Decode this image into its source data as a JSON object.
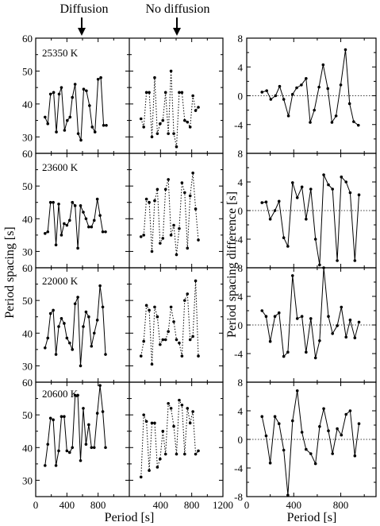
{
  "header": {
    "diffusion": "Diffusion",
    "no_diffusion": "No diffusion"
  },
  "axis_labels": {
    "left_y": "Period spacing [s]",
    "right_y": "Period spacing difference [s]",
    "left_x": "Period [s]",
    "right_x": "Period [s]"
  },
  "temperatures": [
    "25350 K",
    "23600 K",
    "22000 K",
    "20600 K"
  ],
  "arrow_positions_s": [
    580,
    600
  ],
  "chart_data": [
    {
      "type": "line",
      "panel": "period-spacing",
      "x_range": [
        0,
        1200
      ],
      "y_range": [
        25,
        60
      ],
      "x_ticks": [
        0,
        400,
        800,
        1200
      ],
      "y_ticks": [
        30,
        40,
        50,
        60
      ],
      "series": [
        {
          "style": "solid",
          "x": [
            120,
            155,
            190,
            230,
            265,
            300,
            330,
            370,
            405,
            440,
            470,
            505,
            545,
            580,
            615,
            650,
            690,
            725,
            760,
            800,
            835,
            870,
            905
          ],
          "y": [
            36,
            34,
            43,
            43.5,
            31.5,
            43,
            45,
            32,
            35,
            36,
            42,
            46,
            31,
            29,
            44.5,
            44,
            39.5,
            33,
            31.5,
            47.5,
            48,
            33.5,
            33.5
          ]
        },
        {
          "style": "dotted",
          "x": [
            150,
            185,
            220,
            255,
            290,
            325,
            360,
            395,
            430,
            465,
            500,
            535,
            570,
            605,
            640,
            675,
            710,
            745,
            780,
            815,
            850,
            885
          ],
          "y": [
            35.5,
            33,
            43.5,
            43.5,
            30,
            48,
            31,
            34,
            35,
            43.5,
            31,
            50,
            31,
            27,
            43.5,
            43.5,
            35,
            34.5,
            33,
            42.5,
            38,
            39
          ]
        }
      ]
    },
    {
      "type": "line",
      "panel": "period-spacing-difference",
      "x_range": [
        0,
        1100
      ],
      "y_range": [
        -8,
        8
      ],
      "x_ticks": [
        0,
        400,
        800
      ],
      "y_ticks": [
        -4,
        0,
        4,
        8
      ],
      "zero_line": true,
      "x": [
        130,
        170,
        205,
        245,
        280,
        315,
        355,
        390,
        425,
        465,
        505,
        540,
        575,
        615,
        650,
        690,
        725,
        760,
        800,
        840,
        875,
        910,
        950
      ],
      "y": [
        0.5,
        0.7,
        -0.5,
        0,
        1.3,
        -0.5,
        -2.8,
        0.2,
        1.1,
        1.5,
        2.4,
        -3.7,
        -2.0,
        1.2,
        4.3,
        1.0,
        -3.7,
        -2.8,
        1.5,
        6.4,
        -1.1,
        -3.6,
        -4.1
      ]
    },
    {
      "type": "line",
      "panel": "period-spacing",
      "x_range": [
        0,
        1200
      ],
      "y_range": [
        25,
        60
      ],
      "x_ticks": [
        0,
        400,
        800,
        1200
      ],
      "y_ticks": [
        30,
        40,
        50,
        60
      ],
      "series": [
        {
          "style": "solid",
          "x": [
            120,
            155,
            190,
            225,
            260,
            295,
            330,
            365,
            400,
            435,
            470,
            505,
            540,
            575,
            610,
            645,
            680,
            715,
            750,
            790,
            825,
            860,
            895
          ],
          "y": [
            35.5,
            36,
            45,
            45,
            32,
            44.5,
            35,
            38.5,
            38,
            39.5,
            45,
            44,
            31,
            44,
            42,
            40,
            37.5,
            37.5,
            39.5,
            46,
            41,
            36,
            36
          ]
        },
        {
          "style": "dotted",
          "x": [
            150,
            185,
            220,
            255,
            290,
            325,
            360,
            395,
            430,
            465,
            500,
            535,
            570,
            605,
            640,
            675,
            710,
            745,
            780,
            815,
            850,
            885
          ],
          "y": [
            34.5,
            35,
            46,
            45,
            30,
            45.5,
            49,
            32.5,
            34,
            49,
            52,
            35,
            38,
            29,
            37,
            51,
            48,
            31,
            47,
            54,
            43,
            33.5
          ]
        }
      ]
    },
    {
      "type": "line",
      "panel": "period-spacing-difference",
      "x_range": [
        0,
        1100
      ],
      "y_range": [
        -8,
        8
      ],
      "x_ticks": [
        0,
        400,
        800
      ],
      "y_ticks": [
        -4,
        0,
        4,
        8
      ],
      "zero_line": true,
      "x": [
        130,
        165,
        200,
        240,
        275,
        315,
        350,
        390,
        430,
        470,
        505,
        545,
        585,
        620,
        655,
        695,
        730,
        770,
        805,
        845,
        880,
        920,
        955
      ],
      "y": [
        1.1,
        1.2,
        -1.2,
        0,
        1.3,
        -3.8,
        -5.0,
        3.9,
        1.8,
        3.3,
        -1.2,
        3.0,
        -4.0,
        -7.6,
        5.0,
        3.6,
        3.0,
        -7.0,
        4.7,
        4.0,
        2.5,
        -7.0,
        2.2
      ]
    },
    {
      "type": "line",
      "panel": "period-spacing",
      "x_range": [
        0,
        1200
      ],
      "y_range": [
        25,
        60
      ],
      "x_ticks": [
        0,
        400,
        800,
        1200
      ],
      "y_ticks": [
        30,
        40,
        50,
        60
      ],
      "series": [
        {
          "style": "solid",
          "x": [
            120,
            155,
            190,
            225,
            260,
            295,
            330,
            365,
            400,
            435,
            470,
            505,
            540,
            575,
            610,
            645,
            680,
            715,
            750,
            790,
            825,
            860,
            895
          ],
          "y": [
            35.5,
            38.5,
            46,
            47,
            33.5,
            42,
            44.5,
            43,
            38.5,
            37,
            35,
            49,
            51,
            30,
            42,
            46.5,
            45,
            36,
            40,
            44,
            54.5,
            48,
            33.5
          ]
        },
        {
          "style": "dotted",
          "x": [
            150,
            185,
            220,
            255,
            290,
            325,
            360,
            395,
            430,
            465,
            500,
            535,
            570,
            605,
            640,
            675,
            710,
            745,
            780,
            815,
            850,
            885
          ],
          "y": [
            33,
            37.5,
            48.5,
            47,
            30.5,
            48,
            45,
            36.5,
            38,
            38,
            40.5,
            48,
            43.5,
            38,
            37,
            33,
            50,
            52,
            38,
            39,
            56,
            33
          ]
        }
      ]
    },
    {
      "type": "line",
      "panel": "period-spacing-difference",
      "x_range": [
        0,
        1100
      ],
      "y_range": [
        -8,
        8
      ],
      "x_ticks": [
        0,
        400,
        800
      ],
      "y_ticks": [
        -4,
        0,
        4,
        8
      ],
      "zero_line": true,
      "x": [
        130,
        165,
        200,
        240,
        275,
        315,
        350,
        390,
        430,
        470,
        505,
        545,
        585,
        620,
        655,
        695,
        730,
        770,
        805,
        845,
        880,
        920,
        955
      ],
      "y": [
        2.0,
        1.2,
        -2.3,
        1.2,
        1.7,
        -4.4,
        -3.8,
        6.9,
        0.9,
        1.2,
        -3.8,
        0.9,
        -4.6,
        -2.2,
        8.0,
        1.2,
        -1.2,
        -0.1,
        2.5,
        -1.7,
        0.7,
        -1.8,
        0.4
      ]
    },
    {
      "type": "line",
      "panel": "period-spacing",
      "x_range": [
        0,
        1200
      ],
      "y_range": [
        25,
        60
      ],
      "x_ticks": [
        0,
        400,
        800,
        1200
      ],
      "y_ticks": [
        30,
        40,
        50,
        60
      ],
      "series": [
        {
          "style": "solid",
          "x": [
            120,
            155,
            190,
            225,
            260,
            295,
            330,
            365,
            400,
            435,
            470,
            505,
            540,
            575,
            610,
            645,
            680,
            715,
            750,
            790,
            825,
            860,
            895
          ],
          "y": [
            34.5,
            41,
            49,
            48.5,
            34.5,
            39,
            49.5,
            49.5,
            39,
            38.5,
            40,
            56,
            56,
            36,
            52,
            41,
            47,
            40,
            40,
            50.5,
            59,
            51,
            40
          ]
        },
        {
          "style": "dotted",
          "x": [
            150,
            185,
            220,
            255,
            290,
            325,
            360,
            395,
            430,
            465,
            500,
            535,
            570,
            605,
            640,
            675,
            710,
            745,
            780,
            815,
            850,
            885
          ],
          "y": [
            31,
            50,
            48,
            33,
            47.5,
            47.5,
            34,
            36.5,
            45,
            38,
            53.5,
            52,
            46.5,
            38,
            54.5,
            53,
            38,
            52,
            47.5,
            51,
            38,
            39
          ]
        }
      ]
    },
    {
      "type": "line",
      "panel": "period-spacing-difference",
      "x_range": [
        0,
        1100
      ],
      "y_range": [
        -8,
        8
      ],
      "x_ticks": [
        0,
        400,
        800
      ],
      "y_ticks": [
        -4,
        0,
        4,
        8
      ],
      "zero_line": true,
      "x": [
        130,
        165,
        200,
        240,
        275,
        315,
        350,
        390,
        430,
        470,
        505,
        545,
        585,
        620,
        655,
        695,
        730,
        770,
        805,
        845,
        880,
        920,
        955
      ],
      "y": [
        3.2,
        0.5,
        -3.3,
        3.2,
        2.2,
        -1.5,
        -7.8,
        2.6,
        6.8,
        1.0,
        -1.4,
        -2.0,
        -3.4,
        1.8,
        4.3,
        1.2,
        -2.0,
        1.5,
        0.6,
        3.5,
        4.0,
        -2.3,
        2.2
      ]
    }
  ]
}
